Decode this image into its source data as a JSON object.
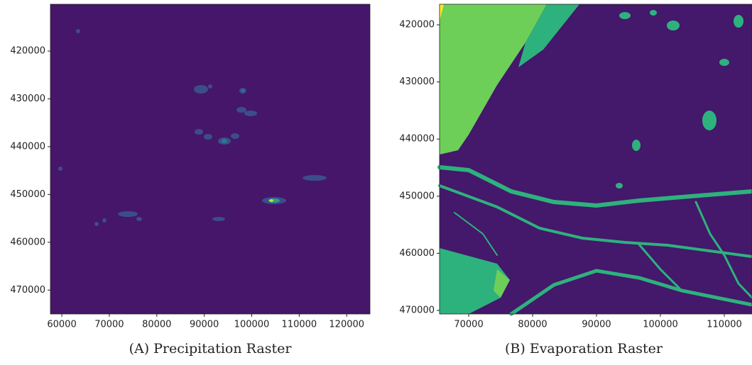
{
  "chart_data": [
    {
      "type": "raster",
      "caption": "(A) Precipitation Raster",
      "xlim": [
        57600,
        124900
      ],
      "ylim": [
        410200,
        475000
      ],
      "y_inverted": true,
      "xticks": [
        60000,
        70000,
        80000,
        90000,
        100000,
        110000,
        120000
      ],
      "yticks": [
        420000,
        430000,
        440000,
        450000,
        460000,
        470000
      ]
    },
    {
      "type": "raster",
      "caption": "(B) Evaporation Raster",
      "xlim": [
        65440,
        114330
      ],
      "ylim": [
        416400,
        470620
      ],
      "y_inverted": true,
      "xticks": [
        70000,
        80000,
        90000,
        100000,
        110000
      ],
      "yticks": [
        420000,
        430000,
        440000,
        450000,
        460000,
        470000
      ]
    }
  ]
}
